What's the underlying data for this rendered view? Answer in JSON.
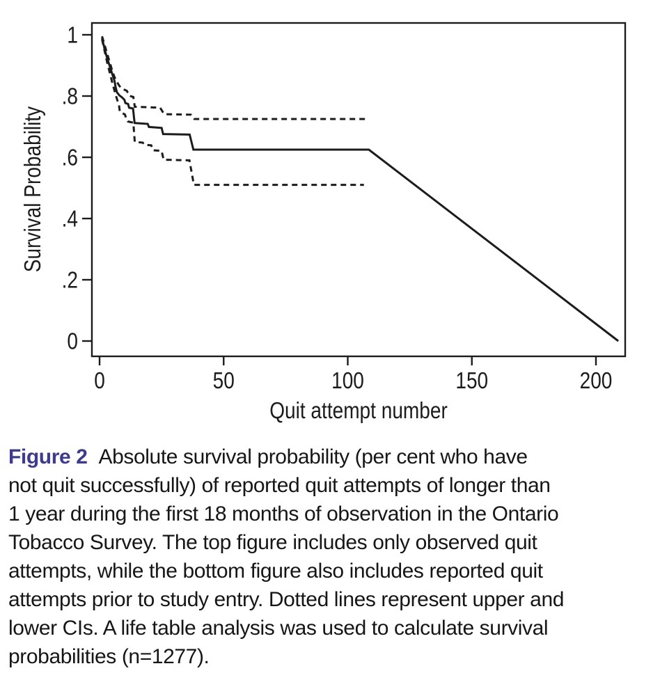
{
  "figure": {
    "caption": {
      "label": "Figure 2",
      "label_color": "#3c3a93",
      "line1_rest": "Absolute survival probability (per cent who have",
      "lines": [
        "not quit successfully) of reported quit attempts of longer than",
        "1 year during the first 18 months of observation in the Ontario",
        "Tobacco Survey. The top figure includes only observed quit",
        "attempts, while the bottom figure also includes reported quit",
        "attempts prior to study entry. Dotted lines represent upper and",
        "lower CIs. A life table analysis was used to calculate survival",
        "probabilities (n=1277)."
      ]
    }
  },
  "chart_data": {
    "type": "line",
    "title": "",
    "xlabel": "Quit attempt number",
    "ylabel": "Survival Probability",
    "xlim": [
      -3,
      212
    ],
    "ylim": [
      -0.05,
      1.04
    ],
    "grid": false,
    "legend": "none",
    "x_ticks": {
      "values": [
        0,
        50,
        100,
        150,
        200
      ],
      "labels": [
        "0",
        "50",
        "100",
        "150",
        "200"
      ]
    },
    "y_ticks": {
      "values": [
        1,
        0.8,
        0.6,
        0.4,
        0.2,
        0
      ],
      "labels": [
        "1",
        ".8",
        ".6",
        ".4",
        ".2",
        "0"
      ]
    },
    "line_color": "#1c1c1c",
    "frame": "box",
    "series": [
      {
        "name": "survival-estimate",
        "style": "solid",
        "points": [
          [
            1,
            0.99
          ],
          [
            2,
            0.955
          ],
          [
            3,
            0.925
          ],
          [
            4,
            0.9
          ],
          [
            5,
            0.875
          ],
          [
            6,
            0.85
          ],
          [
            6.5,
            0.828
          ],
          [
            7,
            0.812
          ],
          [
            8,
            0.802
          ],
          [
            9,
            0.796
          ],
          [
            10,
            0.788
          ],
          [
            10.4,
            0.777
          ],
          [
            11.5,
            0.774
          ],
          [
            11.9,
            0.762
          ],
          [
            13.5,
            0.759
          ],
          [
            14.1,
            0.712
          ],
          [
            19.4,
            0.709
          ],
          [
            19.9,
            0.699
          ],
          [
            25,
            0.696
          ],
          [
            25.6,
            0.676
          ],
          [
            36.3,
            0.674
          ],
          [
            37.8,
            0.625
          ],
          [
            108.5,
            0.625
          ],
          [
            209,
            0.0
          ]
        ]
      },
      {
        "name": "upper-ci",
        "style": "dashed",
        "points": [
          [
            1,
            0.995
          ],
          [
            3,
            0.94
          ],
          [
            5,
            0.886
          ],
          [
            6,
            0.862
          ],
          [
            7,
            0.846
          ],
          [
            8,
            0.833
          ],
          [
            9,
            0.824
          ],
          [
            11,
            0.817
          ],
          [
            11.9,
            0.801
          ],
          [
            13.6,
            0.797
          ],
          [
            14.2,
            0.765
          ],
          [
            24.4,
            0.762
          ],
          [
            26,
            0.741
          ],
          [
            36.8,
            0.739
          ],
          [
            38.2,
            0.725
          ],
          [
            107.5,
            0.725
          ]
        ]
      },
      {
        "name": "lower-ci",
        "style": "dashed",
        "points": [
          [
            1,
            0.985
          ],
          [
            3,
            0.912
          ],
          [
            5,
            0.848
          ],
          [
            6,
            0.818
          ],
          [
            7,
            0.79
          ],
          [
            7.8,
            0.772
          ],
          [
            8.2,
            0.748
          ],
          [
            10.2,
            0.74
          ],
          [
            10.9,
            0.723
          ],
          [
            11.4,
            0.717
          ],
          [
            13.6,
            0.713
          ],
          [
            14.2,
            0.65
          ],
          [
            17.4,
            0.648
          ],
          [
            18.1,
            0.641
          ],
          [
            20.8,
            0.639
          ],
          [
            21.6,
            0.623
          ],
          [
            25,
            0.621
          ],
          [
            25.8,
            0.592
          ],
          [
            36.2,
            0.59
          ],
          [
            38,
            0.51
          ],
          [
            106.5,
            0.51
          ]
        ]
      }
    ]
  }
}
